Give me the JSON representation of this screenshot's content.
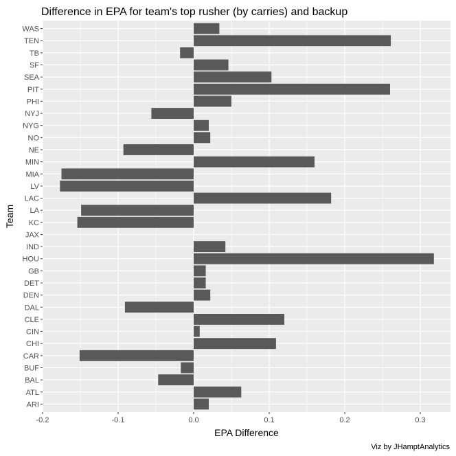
{
  "chart_data": {
    "type": "bar",
    "orientation": "horizontal",
    "title": "Difference in EPA for team's top rusher (by carries) and backup",
    "xlabel": "EPA Difference",
    "ylabel": "Team",
    "caption": "Viz by JHamptAnalytics",
    "xlim": [
      -0.2,
      0.34
    ],
    "x_ticks": [
      -0.2,
      -0.1,
      0.0,
      0.1,
      0.2,
      0.3
    ],
    "x_tick_labels": [
      "-0.2",
      "-0.1",
      "0.0",
      "0.1",
      "0.2",
      "0.3"
    ],
    "grid": true,
    "bar_color": "#595959",
    "panel_color": "#ebebeb",
    "categories": [
      "WAS",
      "TEN",
      "TB",
      "SF",
      "SEA",
      "PIT",
      "PHI",
      "NYJ",
      "NYG",
      "NO",
      "NE",
      "MIN",
      "MIA",
      "LV",
      "LAC",
      "LA",
      "KC",
      "JAX",
      "IND",
      "HOU",
      "GB",
      "DET",
      "DEN",
      "DAL",
      "CLE",
      "CIN",
      "CHI",
      "CAR",
      "BUF",
      "BAL",
      "ATL",
      "ARI"
    ],
    "values": [
      0.034,
      0.261,
      -0.018,
      0.046,
      0.103,
      0.26,
      0.05,
      -0.056,
      0.02,
      0.022,
      -0.093,
      0.16,
      -0.175,
      -0.177,
      0.182,
      -0.149,
      -0.154,
      0.0,
      0.042,
      0.318,
      0.016,
      0.016,
      0.022,
      -0.091,
      0.12,
      0.008,
      0.109,
      -0.151,
      -0.017,
      -0.047,
      0.063,
      0.02
    ]
  }
}
